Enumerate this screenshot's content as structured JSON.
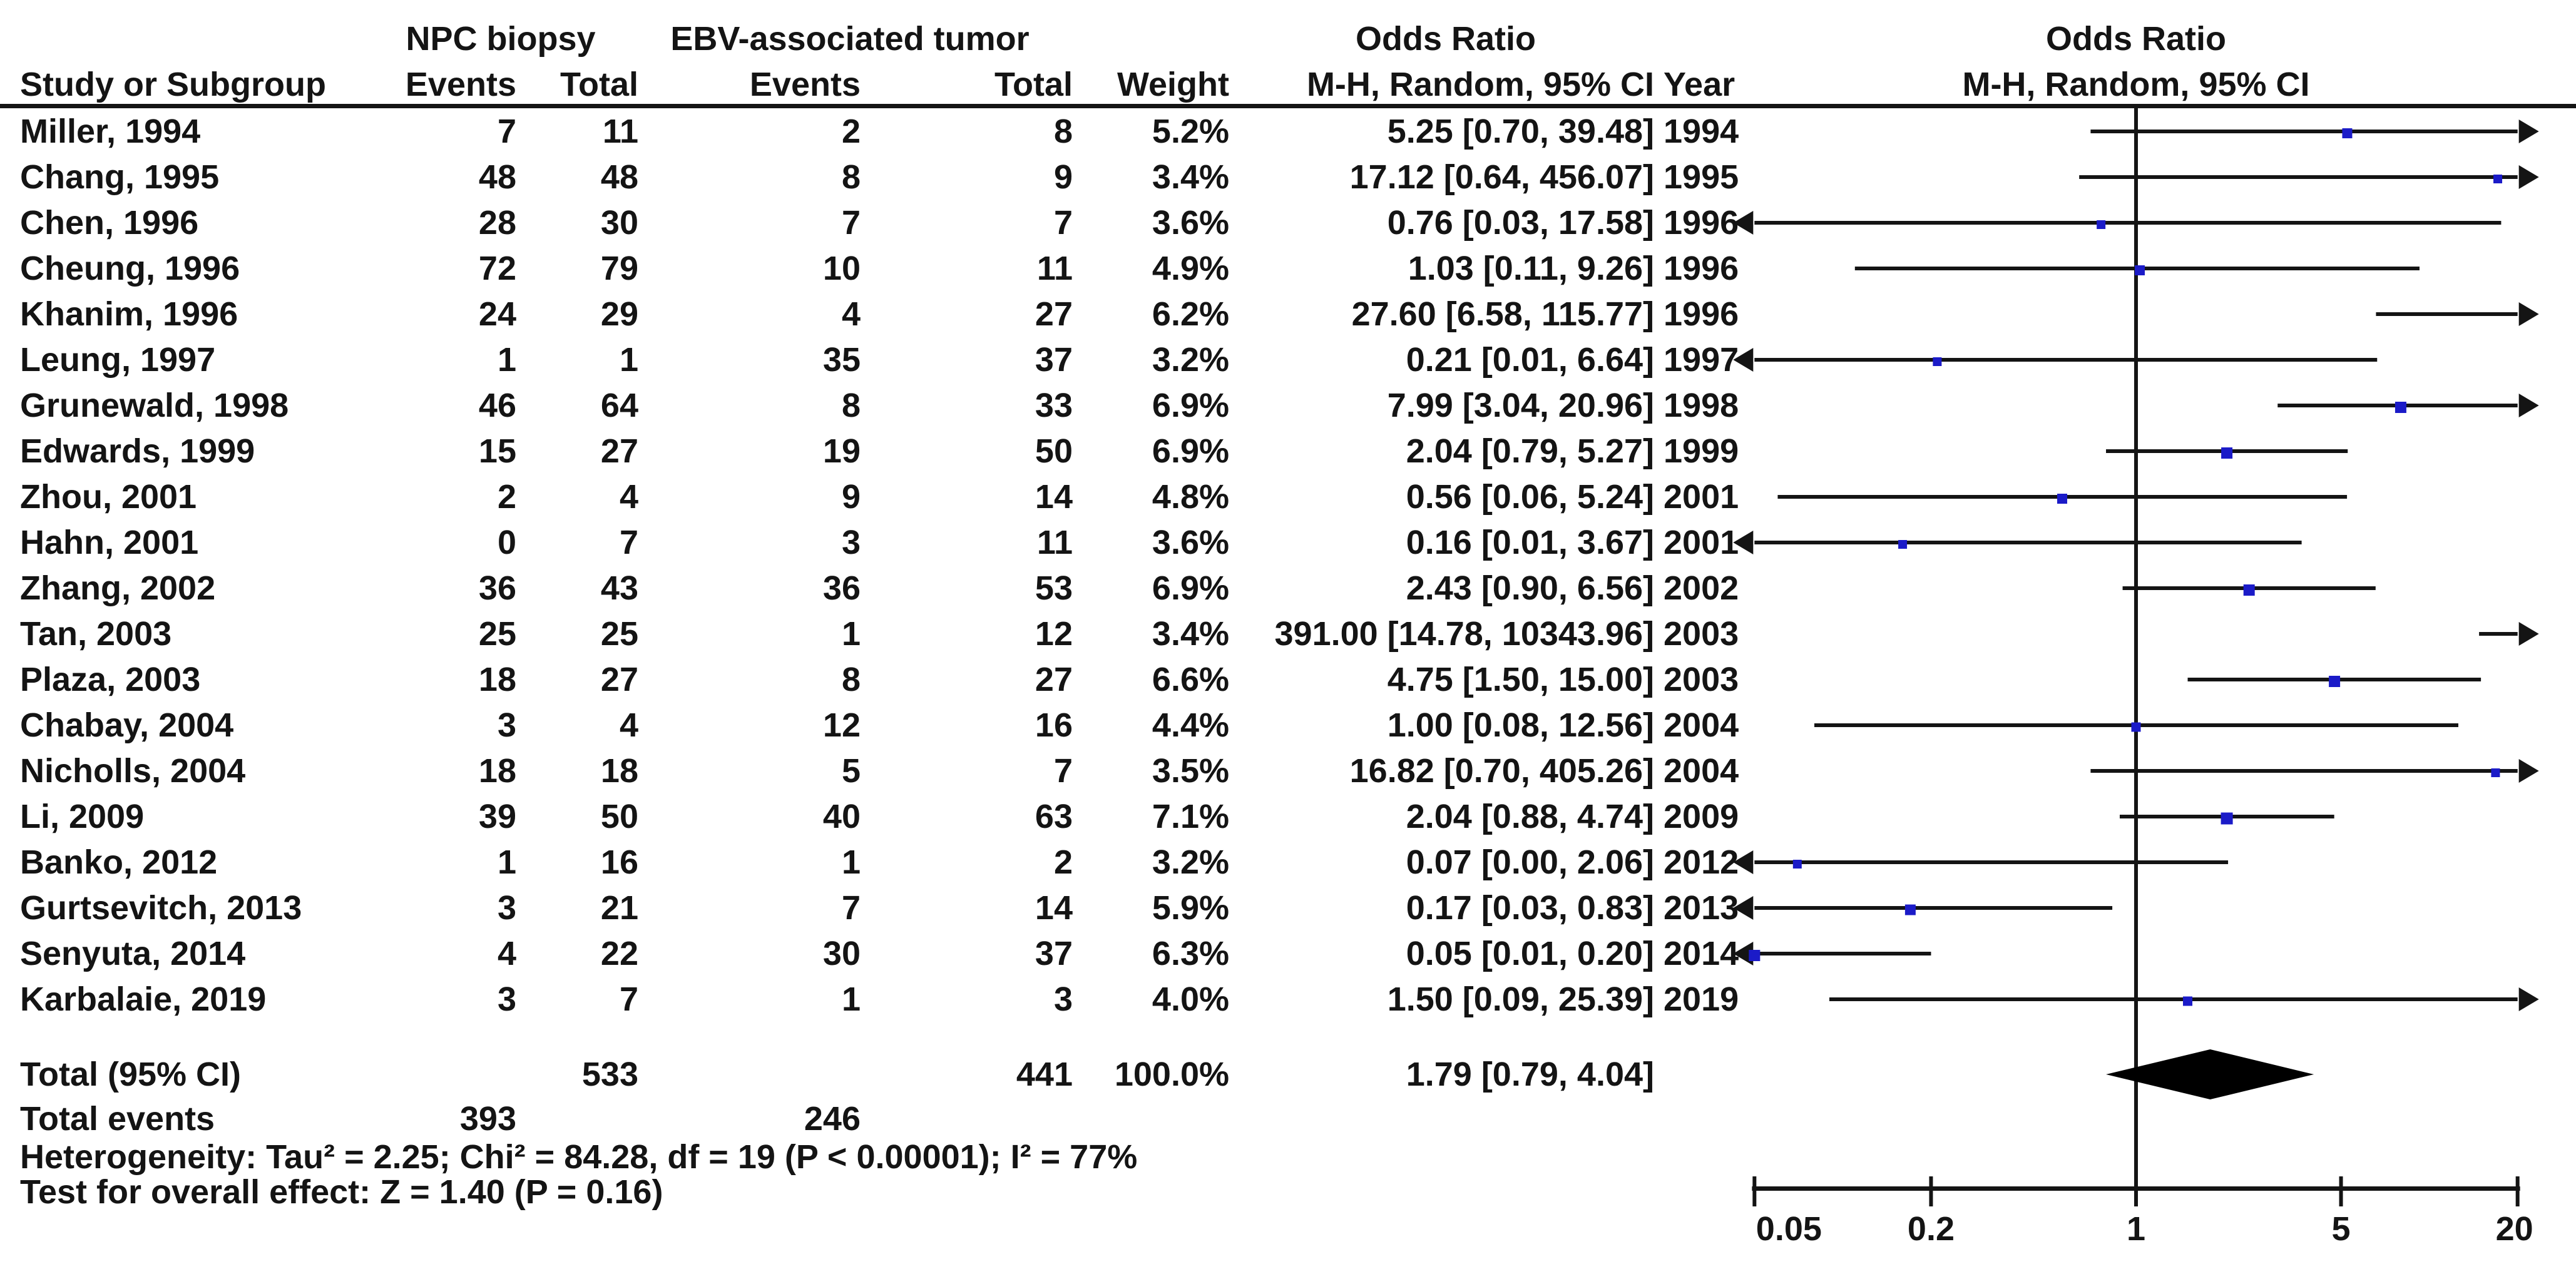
{
  "header": {
    "study_col": "Study or Subgroup",
    "group1": "NPC biopsy",
    "group2": "EBV-associated tumor",
    "events": "Events",
    "total": "Total",
    "weight": "Weight",
    "or_title": "Odds Ratio",
    "or_method": "M-H, Random, 95% CI",
    "year": "Year"
  },
  "studies": [
    {
      "name": "Miller, 1994",
      "events1": "7",
      "total1": "11",
      "events2": "2",
      "total2": "8",
      "weight": "5.2%",
      "or_ci": "5.25 [0.70, 39.48]",
      "year": "1994",
      "or": 5.25,
      "lo": 0.7,
      "hi": 39.48,
      "w": 5.2
    },
    {
      "name": "Chang, 1995",
      "events1": "48",
      "total1": "48",
      "events2": "8",
      "total2": "9",
      "weight": "3.4%",
      "or_ci": "17.12 [0.64, 456.07]",
      "year": "1995",
      "or": 17.12,
      "lo": 0.64,
      "hi": 456.07,
      "w": 3.4
    },
    {
      "name": "Chen, 1996",
      "events1": "28",
      "total1": "30",
      "events2": "7",
      "total2": "7",
      "weight": "3.6%",
      "or_ci": "0.76 [0.03, 17.58]",
      "year": "1996",
      "or": 0.76,
      "lo": 0.03,
      "hi": 17.58,
      "w": 3.6
    },
    {
      "name": "Cheung, 1996",
      "events1": "72",
      "total1": "79",
      "events2": "10",
      "total2": "11",
      "weight": "4.9%",
      "or_ci": "1.03 [0.11, 9.26]",
      "year": "1996",
      "or": 1.03,
      "lo": 0.11,
      "hi": 9.26,
      "w": 4.9
    },
    {
      "name": "Khanim, 1996",
      "events1": "24",
      "total1": "29",
      "events2": "4",
      "total2": "27",
      "weight": "6.2%",
      "or_ci": "27.60 [6.58, 115.77]",
      "year": "1996",
      "or": 27.6,
      "lo": 6.58,
      "hi": 115.77,
      "w": 6.2
    },
    {
      "name": "Leung, 1997",
      "events1": "1",
      "total1": "1",
      "events2": "35",
      "total2": "37",
      "weight": "3.2%",
      "or_ci": "0.21 [0.01, 6.64]",
      "year": "1997",
      "or": 0.21,
      "lo": 0.01,
      "hi": 6.64,
      "w": 3.2
    },
    {
      "name": "Grunewald, 1998",
      "events1": "46",
      "total1": "64",
      "events2": "8",
      "total2": "33",
      "weight": "6.9%",
      "or_ci": "7.99 [3.04, 20.96]",
      "year": "1998",
      "or": 7.99,
      "lo": 3.04,
      "hi": 20.96,
      "w": 6.9
    },
    {
      "name": "Edwards, 1999",
      "events1": "15",
      "total1": "27",
      "events2": "19",
      "total2": "50",
      "weight": "6.9%",
      "or_ci": "2.04 [0.79, 5.27]",
      "year": "1999",
      "or": 2.04,
      "lo": 0.79,
      "hi": 5.27,
      "w": 6.9
    },
    {
      "name": "Zhou, 2001",
      "events1": "2",
      "total1": "4",
      "events2": "9",
      "total2": "14",
      "weight": "4.8%",
      "or_ci": "0.56 [0.06, 5.24]",
      "year": "2001",
      "or": 0.56,
      "lo": 0.06,
      "hi": 5.24,
      "w": 4.8
    },
    {
      "name": "Hahn, 2001",
      "events1": "0",
      "total1": "7",
      "events2": "3",
      "total2": "11",
      "weight": "3.6%",
      "or_ci": "0.16 [0.01, 3.67]",
      "year": "2001",
      "or": 0.16,
      "lo": 0.01,
      "hi": 3.67,
      "w": 3.6
    },
    {
      "name": "Zhang, 2002",
      "events1": "36",
      "total1": "43",
      "events2": "36",
      "total2": "53",
      "weight": "6.9%",
      "or_ci": "2.43 [0.90, 6.56]",
      "year": "2002",
      "or": 2.43,
      "lo": 0.9,
      "hi": 6.56,
      "w": 6.9
    },
    {
      "name": "Tan, 2003",
      "events1": "25",
      "total1": "25",
      "events2": "1",
      "total2": "12",
      "weight": "3.4%",
      "or_ci": "391.00 [14.78, 10343.96]",
      "year": "2003",
      "or": 391.0,
      "lo": 14.78,
      "hi": 10343.96,
      "w": 3.4
    },
    {
      "name": "Plaza, 2003",
      "events1": "18",
      "total1": "27",
      "events2": "8",
      "total2": "27",
      "weight": "6.6%",
      "or_ci": "4.75 [1.50, 15.00]",
      "year": "2003",
      "or": 4.75,
      "lo": 1.5,
      "hi": 15.0,
      "w": 6.6
    },
    {
      "name": "Chabay, 2004",
      "events1": "3",
      "total1": "4",
      "events2": "12",
      "total2": "16",
      "weight": "4.4%",
      "or_ci": "1.00 [0.08, 12.56]",
      "year": "2004",
      "or": 1.0,
      "lo": 0.08,
      "hi": 12.56,
      "w": 4.4
    },
    {
      "name": "Nicholls, 2004",
      "events1": "18",
      "total1": "18",
      "events2": "5",
      "total2": "7",
      "weight": "3.5%",
      "or_ci": "16.82 [0.70, 405.26]",
      "year": "2004",
      "or": 16.82,
      "lo": 0.7,
      "hi": 405.26,
      "w": 3.5
    },
    {
      "name": "Li, 2009",
      "events1": "39",
      "total1": "50",
      "events2": "40",
      "total2": "63",
      "weight": "7.1%",
      "or_ci": "2.04 [0.88, 4.74]",
      "year": "2009",
      "or": 2.04,
      "lo": 0.88,
      "hi": 4.74,
      "w": 7.1
    },
    {
      "name": "Banko, 2012",
      "events1": "1",
      "total1": "16",
      "events2": "1",
      "total2": "2",
      "weight": "3.2%",
      "or_ci": "0.07 [0.00, 2.06]",
      "year": "2012",
      "or": 0.07,
      "lo": 0.0,
      "hi": 2.06,
      "w": 3.2
    },
    {
      "name": "Gurtsevitch, 2013",
      "events1": "3",
      "total1": "21",
      "events2": "7",
      "total2": "14",
      "weight": "5.9%",
      "or_ci": "0.17 [0.03, 0.83]",
      "year": "2013",
      "or": 0.17,
      "lo": 0.03,
      "hi": 0.83,
      "w": 5.9
    },
    {
      "name": "Senyuta, 2014",
      "events1": "4",
      "total1": "22",
      "events2": "30",
      "total2": "37",
      "weight": "6.3%",
      "or_ci": "0.05 [0.01, 0.20]",
      "year": "2014",
      "or": 0.05,
      "lo": 0.01,
      "hi": 0.2,
      "w": 6.3
    },
    {
      "name": "Karbalaie, 2019",
      "events1": "3",
      "total1": "7",
      "events2": "1",
      "total2": "3",
      "weight": "4.0%",
      "or_ci": "1.50 [0.09, 25.39]",
      "year": "2019",
      "or": 1.5,
      "lo": 0.09,
      "hi": 25.39,
      "w": 4.0
    }
  ],
  "totals": {
    "label": "Total (95% CI)",
    "total1": "533",
    "total2": "441",
    "weight": "100.0%",
    "or_ci": "1.79 [0.79, 4.04]",
    "or": 1.79,
    "lo": 0.79,
    "hi": 4.04
  },
  "total_events": {
    "label": "Total events",
    "events1": "393",
    "events2": "246"
  },
  "footnotes": {
    "heterogeneity": "Heterogeneity: Tau² = 2.25; Chi² = 84.28, df = 19 (P < 0.00001); I² = 77%",
    "overall": "Test for overall effect: Z = 1.40 (P = 0.16)"
  },
  "axis": {
    "scale": "log",
    "min": 0.05,
    "max": 20,
    "ticks": [
      0.05,
      0.2,
      1,
      5,
      20
    ],
    "tick_labels": [
      "0.05",
      "0.2",
      "1",
      "5",
      "20"
    ]
  },
  "colors": {
    "marker": "#1b1bc8",
    "line": "#141414",
    "diamond": "#000000"
  },
  "chart_data": {
    "type": "scatter",
    "subtype": "forest-plot",
    "title": "Odds Ratio, M-H, Random, 95% CI",
    "xlabel": "Odds Ratio (log scale)",
    "x_axis": {
      "scale": "log",
      "min": 0.05,
      "max": 20,
      "ticks": [
        0.05,
        0.2,
        1,
        5,
        20
      ]
    },
    "categories": [
      "Miller, 1994",
      "Chang, 1995",
      "Chen, 1996",
      "Cheung, 1996",
      "Khanim, 1996",
      "Leung, 1997",
      "Grunewald, 1998",
      "Edwards, 1999",
      "Zhou, 2001",
      "Hahn, 2001",
      "Zhang, 2002",
      "Tan, 2003",
      "Plaza, 2003",
      "Chabay, 2004",
      "Nicholls, 2004",
      "Li, 2009",
      "Banko, 2012",
      "Gurtsevitch, 2013",
      "Senyuta, 2014",
      "Karbalaie, 2019"
    ],
    "series": [
      {
        "name": "Odds Ratio",
        "values": [
          5.25,
          17.12,
          0.76,
          1.03,
          27.6,
          0.21,
          7.99,
          2.04,
          0.56,
          0.16,
          2.43,
          391.0,
          4.75,
          1.0,
          16.82,
          2.04,
          0.07,
          0.17,
          0.05,
          1.5
        ]
      },
      {
        "name": "CI lower",
        "values": [
          0.7,
          0.64,
          0.03,
          0.11,
          6.58,
          0.01,
          3.04,
          0.79,
          0.06,
          0.01,
          0.9,
          14.78,
          1.5,
          0.08,
          0.7,
          0.88,
          0.0,
          0.03,
          0.01,
          0.09
        ]
      },
      {
        "name": "CI upper",
        "values": [
          39.48,
          456.07,
          17.58,
          9.26,
          115.77,
          6.64,
          20.96,
          5.27,
          5.24,
          3.67,
          6.56,
          10343.96,
          15.0,
          12.56,
          405.26,
          4.74,
          2.06,
          0.83,
          0.2,
          25.39
        ]
      },
      {
        "name": "Weight %",
        "values": [
          5.2,
          3.4,
          3.6,
          4.9,
          6.2,
          3.2,
          6.9,
          6.9,
          4.8,
          3.6,
          6.9,
          3.4,
          6.6,
          4.4,
          3.5,
          7.1,
          3.2,
          5.9,
          6.3,
          4.0
        ]
      }
    ],
    "summary": {
      "label": "Total (95% CI)",
      "or": 1.79,
      "lo": 0.79,
      "hi": 4.04,
      "marker": "diamond"
    }
  }
}
